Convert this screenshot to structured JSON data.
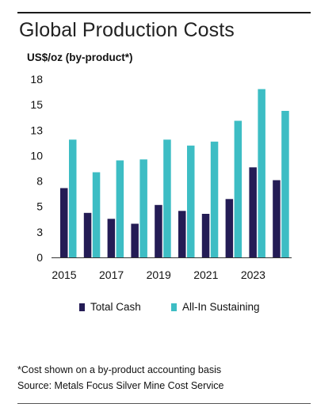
{
  "header": {
    "title": "Global Production Costs",
    "unit_label": "US$/oz (by-product*)"
  },
  "legend": {
    "total_cash": "Total Cash",
    "all_in": "All-In Sustaining"
  },
  "footnotes": {
    "note": "*Cost shown on a by-product accounting basis",
    "source": "Source: Metals Focus Silver Mine Cost Service"
  },
  "colors": {
    "total_cash": "#241c55",
    "all_in": "#3dbdc4",
    "axis": "#333333"
  },
  "chart_data": {
    "type": "bar",
    "title": "Global Production Costs",
    "ylabel": "US$/oz (by-product*)",
    "xlabel": "",
    "ylim": [
      0,
      18
    ],
    "yticks": [
      "0",
      "3",
      "5",
      "8",
      "10",
      "13",
      "15",
      "18"
    ],
    "ytick_values": [
      0,
      2.571,
      5.143,
      7.714,
      10.286,
      12.857,
      15.429,
      18
    ],
    "categories": [
      "2015",
      "2016",
      "2017",
      "2018",
      "2019",
      "2020",
      "2021",
      "2022",
      "2023",
      "2024"
    ],
    "xtick_labels": [
      "2015",
      "",
      "2017",
      "",
      "2019",
      "",
      "2021",
      "",
      "2023",
      ""
    ],
    "grid": false,
    "legend_position": "bottom",
    "series": [
      {
        "name": "Total Cash",
        "values": [
          7.0,
          4.5,
          3.9,
          3.4,
          5.3,
          4.7,
          4.4,
          5.9,
          9.1,
          7.8
        ]
      },
      {
        "name": "All-In Sustaining",
        "values": [
          11.9,
          8.6,
          9.8,
          9.9,
          11.9,
          11.3,
          11.7,
          13.8,
          17.0,
          14.8
        ]
      }
    ]
  }
}
